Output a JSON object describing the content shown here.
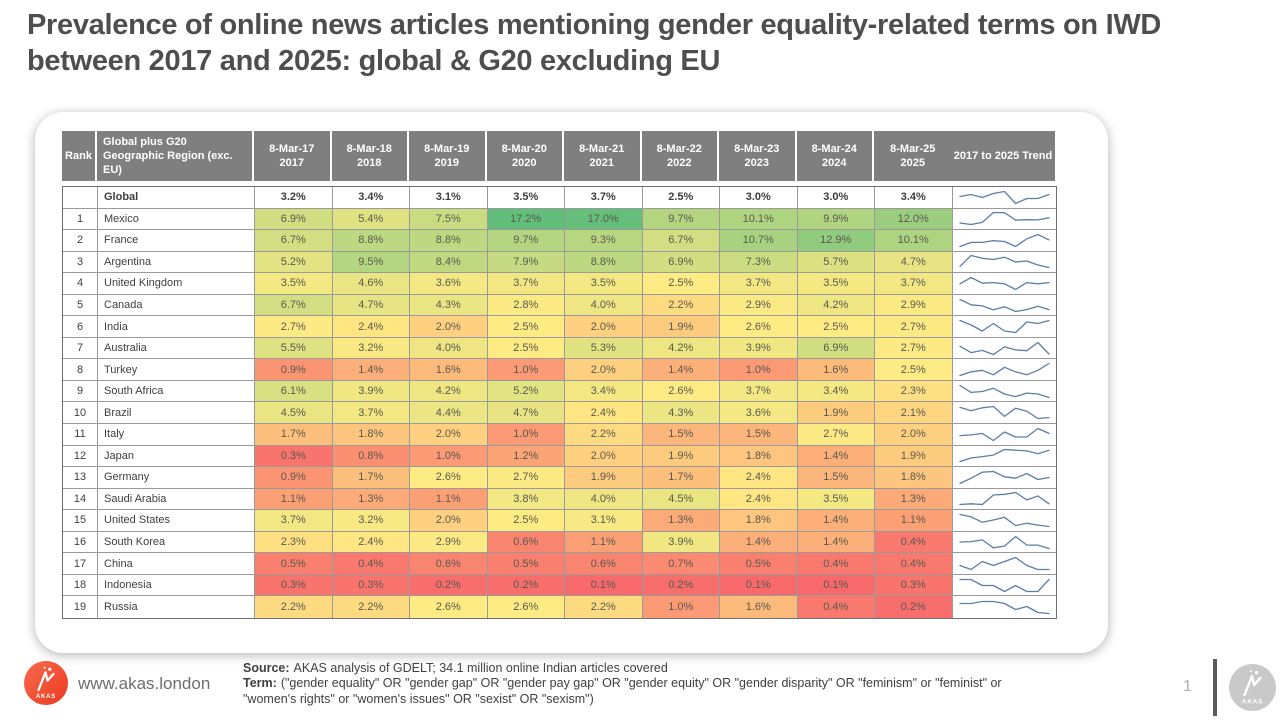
{
  "title": "Prevalence of online news articles mentioning gender equality-related terms on IWD between 2017 and 2025: global & G20 excluding EU",
  "chart_data": {
    "type": "table",
    "subtype": "heatmap-with-sparklines",
    "title": "Prevalence of online news articles mentioning gender equality-related terms on IWD between 2017 and 2025: global & G20 excluding EU",
    "unit": "%",
    "column_headers": {
      "rank": "Rank",
      "region": "Global plus G20 Geographic Region (exc. EU)",
      "dates": [
        "8-Mar-17",
        "8-Mar-18",
        "8-Mar-19",
        "8-Mar-20",
        "8-Mar-21",
        "8-Mar-22",
        "8-Mar-23",
        "8-Mar-24",
        "8-Mar-25"
      ],
      "years": [
        "2017",
        "2018",
        "2019",
        "2020",
        "2021",
        "2022",
        "2023",
        "2024",
        "2025"
      ],
      "trend": "2017 to 2025 Trend"
    },
    "global_row": {
      "rank": "",
      "region": "Global",
      "values": [
        3.2,
        3.4,
        3.1,
        3.5,
        3.7,
        2.5,
        3.0,
        3.0,
        3.4
      ]
    },
    "rows": [
      {
        "rank": 1,
        "region": "Mexico",
        "values": [
          6.9,
          5.4,
          7.5,
          17.2,
          17.0,
          9.7,
          10.1,
          9.9,
          12.0
        ]
      },
      {
        "rank": 2,
        "region": "France",
        "values": [
          6.7,
          8.8,
          8.8,
          9.7,
          9.3,
          6.7,
          10.7,
          12.9,
          10.1
        ]
      },
      {
        "rank": 3,
        "region": "Argentina",
        "values": [
          5.2,
          9.5,
          8.4,
          7.9,
          8.8,
          6.9,
          7.3,
          5.7,
          4.7
        ]
      },
      {
        "rank": 4,
        "region": "United Kingdom",
        "values": [
          3.5,
          4.6,
          3.6,
          3.7,
          3.5,
          2.5,
          3.7,
          3.5,
          3.7
        ]
      },
      {
        "rank": 5,
        "region": "Canada",
        "values": [
          6.7,
          4.7,
          4.3,
          2.8,
          4.0,
          2.2,
          2.9,
          4.2,
          2.9
        ]
      },
      {
        "rank": 6,
        "region": "India",
        "values": [
          2.7,
          2.4,
          2.0,
          2.5,
          2.0,
          1.9,
          2.6,
          2.5,
          2.7
        ]
      },
      {
        "rank": 7,
        "region": "Australia",
        "values": [
          5.5,
          3.2,
          4.0,
          2.5,
          5.3,
          4.2,
          3.9,
          6.9,
          2.7
        ]
      },
      {
        "rank": 8,
        "region": "Turkey",
        "values": [
          0.9,
          1.4,
          1.6,
          1.0,
          2.0,
          1.4,
          1.0,
          1.6,
          2.5
        ]
      },
      {
        "rank": 9,
        "region": "South Africa",
        "values": [
          6.1,
          3.9,
          4.2,
          5.2,
          3.4,
          2.6,
          3.7,
          3.4,
          2.3
        ]
      },
      {
        "rank": 10,
        "region": "Brazil",
        "values": [
          4.5,
          3.7,
          4.4,
          4.7,
          2.4,
          4.3,
          3.6,
          1.9,
          2.1
        ]
      },
      {
        "rank": 11,
        "region": "Italy",
        "values": [
          1.7,
          1.8,
          2.0,
          1.0,
          2.2,
          1.5,
          1.5,
          2.7,
          2.0
        ]
      },
      {
        "rank": 12,
        "region": "Japan",
        "values": [
          0.3,
          0.8,
          1.0,
          1.2,
          2.0,
          1.9,
          1.8,
          1.4,
          1.9
        ]
      },
      {
        "rank": 13,
        "region": "Germany",
        "values": [
          0.9,
          1.7,
          2.6,
          2.7,
          1.9,
          1.7,
          2.4,
          1.5,
          1.8
        ]
      },
      {
        "rank": 14,
        "region": "Saudi Arabia",
        "values": [
          1.1,
          1.3,
          1.1,
          3.8,
          4.0,
          4.5,
          2.4,
          3.5,
          1.3
        ]
      },
      {
        "rank": 15,
        "region": "United States",
        "values": [
          3.7,
          3.2,
          2.0,
          2.5,
          3.1,
          1.3,
          1.8,
          1.4,
          1.1
        ]
      },
      {
        "rank": 16,
        "region": "South Korea",
        "values": [
          2.3,
          2.4,
          2.9,
          0.6,
          1.1,
          3.9,
          1.4,
          1.4,
          0.4
        ]
      },
      {
        "rank": 17,
        "region": "China",
        "values": [
          0.5,
          0.4,
          0.6,
          0.5,
          0.6,
          0.7,
          0.5,
          0.4,
          0.4
        ]
      },
      {
        "rank": 18,
        "region": "Indonesia",
        "values": [
          0.3,
          0.3,
          0.2,
          0.2,
          0.1,
          0.2,
          0.1,
          0.1,
          0.3
        ]
      },
      {
        "rank": 19,
        "region": "Russia",
        "values": [
          2.2,
          2.2,
          2.6,
          2.6,
          2.2,
          1.0,
          1.6,
          0.4,
          0.2
        ]
      }
    ],
    "heatmap_scale": {
      "min_color": "#F8696B",
      "mid_color": "#FFEB84",
      "max_color": "#63BE7B",
      "midpoint": "50th percentile"
    },
    "sparkline_color": "#5B7FA6",
    "header_bg": "#7F7F7F",
    "header_text_color": "#FFFFFF"
  },
  "footer": {
    "website": "www.akas.london",
    "source_label": "Source:",
    "source_text": "AKAS analysis of GDELT; 34.1 million online Indian articles covered",
    "term_label": "Term:",
    "term_text": "(\"gender equality\" OR \"gender gap\" OR \"gender pay gap\" OR \"gender equity\" OR \"gender disparity\" OR \"feminism\" or \"feminist\" or \"women's rights\" or \"women's issues\" OR \"sexist\" OR \"sexism\")",
    "page_number": "1",
    "logo_text": "AKAS",
    "logo_color": "#EF4B2F"
  }
}
